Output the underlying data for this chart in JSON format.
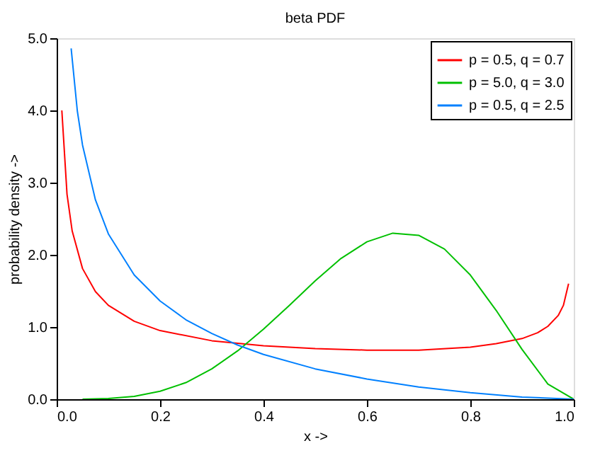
{
  "chart_data": {
    "type": "line",
    "title": "beta PDF",
    "xlabel": "x ->",
    "ylabel": "probability density ->",
    "xlim": [
      0,
      1
    ],
    "ylim": [
      0,
      5
    ],
    "xticks": [
      {
        "value": 0,
        "label": "0.0"
      },
      {
        "value": 0.2,
        "label": "0.2"
      },
      {
        "value": 0.4,
        "label": "0.4"
      },
      {
        "value": 0.6,
        "label": "0.6"
      },
      {
        "value": 0.8,
        "label": "0.8"
      },
      {
        "value": 1,
        "label": "1.0"
      }
    ],
    "yticks": [
      {
        "value": 0,
        "label": "0.0"
      },
      {
        "value": 1,
        "label": "1.0"
      },
      {
        "value": 2,
        "label": "2.0"
      },
      {
        "value": 3,
        "label": "3.0"
      },
      {
        "value": 4,
        "label": "4.0"
      },
      {
        "value": 5,
        "label": "5.0"
      }
    ],
    "grid": false,
    "legend": "top right",
    "marker": "none",
    "line_style": "solid",
    "series": [
      {
        "name": "p = 0.5, q = 0.7",
        "color": "#ff0000",
        "x": [
          0.01,
          0.02,
          0.03,
          0.05,
          0.075,
          0.1,
          0.15,
          0.2,
          0.3,
          0.4,
          0.5,
          0.6,
          0.7,
          0.8,
          0.85,
          0.9,
          0.93,
          0.95,
          0.97,
          0.98,
          0.99
        ],
        "values": [
          4.0,
          2.84,
          2.33,
          1.81,
          1.49,
          1.3,
          1.08,
          0.95,
          0.81,
          0.74,
          0.7,
          0.68,
          0.68,
          0.72,
          0.77,
          0.84,
          0.92,
          1.01,
          1.16,
          1.3,
          1.6
        ]
      },
      {
        "name": "p = 5.0, q = 3.0",
        "color": "#00c000",
        "x": [
          0.05,
          0.1,
          0.15,
          0.2,
          0.25,
          0.3,
          0.35,
          0.4,
          0.45,
          0.5,
          0.55,
          0.6,
          0.65,
          0.7,
          0.75,
          0.8,
          0.85,
          0.9,
          0.95,
          1.0
        ],
        "values": [
          0.0,
          0.01,
          0.04,
          0.11,
          0.23,
          0.42,
          0.67,
          0.97,
          1.3,
          1.64,
          1.95,
          2.18,
          2.3,
          2.27,
          2.08,
          1.72,
          1.23,
          0.69,
          0.21,
          0.0
        ]
      },
      {
        "name": "p = 0.5, q = 2.5",
        "color": "#0080ff",
        "x": [
          0.028,
          0.04,
          0.05,
          0.075,
          0.1,
          0.15,
          0.2,
          0.25,
          0.3,
          0.35,
          0.4,
          0.5,
          0.6,
          0.7,
          0.8,
          0.9,
          1.0
        ],
        "values": [
          4.86,
          3.99,
          3.52,
          2.76,
          2.29,
          1.72,
          1.36,
          1.1,
          0.91,
          0.75,
          0.62,
          0.42,
          0.28,
          0.17,
          0.09,
          0.03,
          0.0
        ]
      }
    ]
  }
}
